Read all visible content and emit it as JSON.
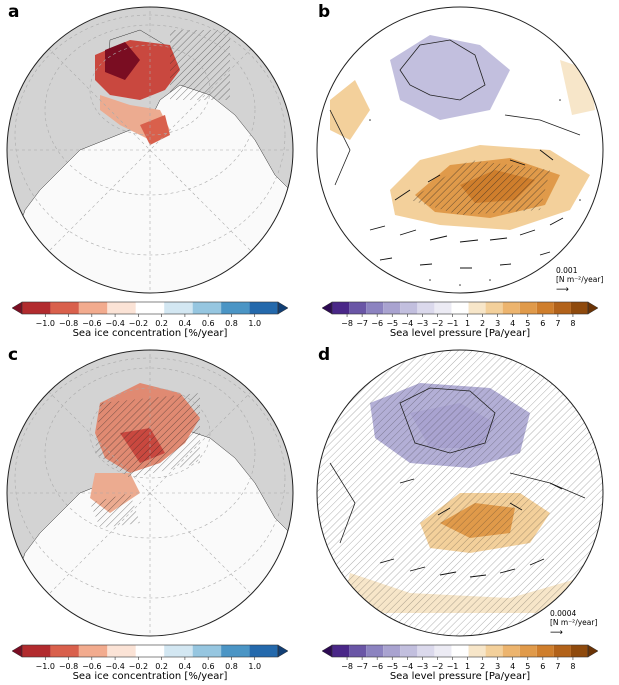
{
  "panels": [
    {
      "id": "a",
      "label": "a",
      "variable": "sea-ice",
      "colorbar": {
        "label": "Sea ice concentration [%/year]",
        "ticks": [
          "−1.0",
          "−0.8",
          "−0.6",
          "−0.4",
          "−0.2",
          "0.2",
          "0.4",
          "0.6",
          "0.8",
          "1.0"
        ],
        "colors": [
          "#7a0d22",
          "#b22b2e",
          "#d9604c",
          "#f2ab8e",
          "#fbe3d6",
          "#ffffff",
          "#d3e7f2",
          "#96c6e0",
          "#4b95c5",
          "#2469ac",
          "#113e74"
        ]
      }
    },
    {
      "id": "b",
      "label": "b",
      "variable": "slp",
      "reference_vector": {
        "value": "0.001",
        "unit": "[N m⁻²/year]"
      },
      "colorbar": {
        "label": "Sea level pressure [Pa/year]",
        "ticks": [
          "−8",
          "−7",
          "−6",
          "−5",
          "−4",
          "−3",
          "−2",
          "−1",
          "1",
          "2",
          "3",
          "4",
          "5",
          "6",
          "7",
          "8"
        ],
        "colors": [
          "#2d0a52",
          "#4a2788",
          "#6a56a6",
          "#8c83c0",
          "#a9a3d0",
          "#c2bfde",
          "#dbd9ec",
          "#ecebf4",
          "#ffffff",
          "#f7e6c9",
          "#f3d09b",
          "#ecb46e",
          "#e09a4a",
          "#cf7e2c",
          "#b2621a",
          "#8f4a0d",
          "#6a3305"
        ]
      }
    },
    {
      "id": "c",
      "label": "c",
      "variable": "sea-ice",
      "colorbar": {
        "label": "Sea ice concentration [%/year]",
        "ticks": [
          "−1.0",
          "−0.8",
          "−0.6",
          "−0.4",
          "−0.2",
          "0.2",
          "0.4",
          "0.6",
          "0.8",
          "1.0"
        ],
        "colors": [
          "#7a0d22",
          "#b22b2e",
          "#d9604c",
          "#f2ab8e",
          "#fbe3d6",
          "#ffffff",
          "#d3e7f2",
          "#96c6e0",
          "#4b95c5",
          "#2469ac",
          "#113e74"
        ]
      }
    },
    {
      "id": "d",
      "label": "d",
      "variable": "slp",
      "reference_vector": {
        "value": "0.0004",
        "unit": "[N m⁻²/year]"
      },
      "colorbar": {
        "label": "Sea level pressure [Pa/year]",
        "ticks": [
          "−8",
          "−7",
          "−6",
          "−5",
          "−4",
          "−3",
          "−2",
          "−1",
          "1",
          "2",
          "3",
          "4",
          "5",
          "6",
          "7",
          "8"
        ],
        "colors": [
          "#2d0a52",
          "#4a2788",
          "#6a56a6",
          "#8c83c0",
          "#a9a3d0",
          "#c2bfde",
          "#dbd9ec",
          "#ecebf4",
          "#ffffff",
          "#f7e6c9",
          "#f3d09b",
          "#ecb46e",
          "#e09a4a",
          "#cf7e2c",
          "#b2621a",
          "#8f4a0d",
          "#6a3305"
        ]
      }
    }
  ],
  "colors": {
    "land": "#d3d3d3",
    "ocean": "#ffffff",
    "graticule": "#aaaaaa",
    "ice_strong": "#8e1a2a",
    "ice_mid": "#c9483f",
    "ice_weak": "#ecab90",
    "slp_low": "#b3afd6",
    "slp_high": "#e49a43"
  }
}
